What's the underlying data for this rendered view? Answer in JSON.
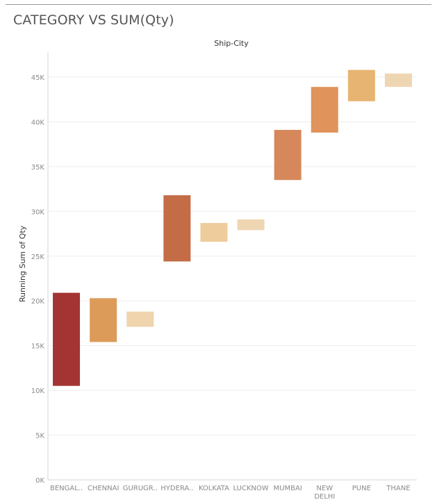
{
  "title": "CATEGORY VS SUM(Qty)",
  "chart_data": {
    "type": "waterfall",
    "column_header": "Ship-City",
    "ylabel": "Running Sum of Qty",
    "ylim": [
      0,
      47000
    ],
    "y_ticks": [
      0,
      5000,
      10000,
      15000,
      20000,
      25000,
      30000,
      35000,
      40000,
      45000
    ],
    "y_tick_labels": [
      "0K",
      "5K",
      "10K",
      "15K",
      "20K",
      "25K",
      "30K",
      "35K",
      "40K",
      "45K"
    ],
    "grid": true,
    "categories": [
      {
        "label": "BENGAL..",
        "start": 10500,
        "end": 20900,
        "color": "#a33433"
      },
      {
        "label": "CHENNAI",
        "start": 15400,
        "end": 20300,
        "color": "#dd9b5a"
      },
      {
        "label": "GURUGR..",
        "start": 17100,
        "end": 18800,
        "color": "#efd4ad"
      },
      {
        "label": "HYDERA..",
        "start": 24400,
        "end": 31800,
        "color": "#c46c45"
      },
      {
        "label": "KOLKATA",
        "start": 26600,
        "end": 28700,
        "color": "#efcc9b"
      },
      {
        "label": "LUCKNOW",
        "start": 27900,
        "end": 29100,
        "color": "#efd6b3"
      },
      {
        "label": "MUMBAI",
        "start": 33500,
        "end": 39100,
        "color": "#d6885a"
      },
      {
        "label": "NEW DELHI",
        "label_lines": [
          "NEW",
          "DELHI"
        ],
        "start": 38800,
        "end": 43900,
        "color": "#e0935a"
      },
      {
        "label": "PUNE",
        "start": 42300,
        "end": 45800,
        "color": "#e8b472"
      },
      {
        "label": "THANE",
        "start": 43900,
        "end": 45400,
        "color": "#efd6b3"
      }
    ]
  }
}
